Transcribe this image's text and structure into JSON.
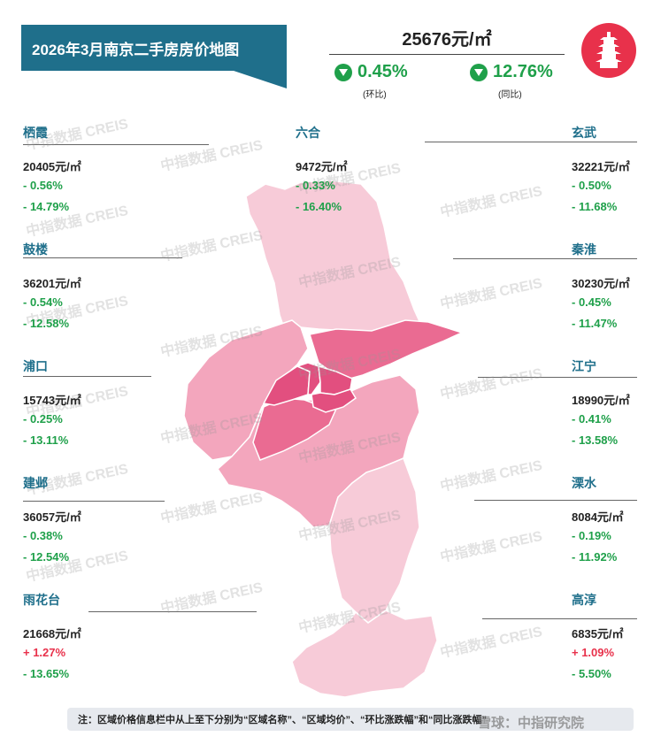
{
  "title": "2026年3月南京二手房房价地图",
  "summary": {
    "avg_price": "25676元/㎡",
    "mom": {
      "value": "0.45%",
      "label": "(环比)",
      "direction": "down"
    },
    "yoy": {
      "value": "12.76%",
      "label": "(同比)",
      "direction": "down"
    }
  },
  "districts": [
    {
      "name": "栖霞",
      "price": "20405元/㎡",
      "mom": "- 0.56%",
      "yoy": "- 14.79%",
      "mom_dir": "down",
      "yoy_dir": "down"
    },
    {
      "name": "鼓楼",
      "price": "36201元/㎡",
      "mom": "- 0.54%",
      "yoy": "- 12.58%",
      "mom_dir": "down",
      "yoy_dir": "down"
    },
    {
      "name": "浦口",
      "price": "15743元/㎡",
      "mom": "- 0.25%",
      "yoy": "- 13.11%",
      "mom_dir": "down",
      "yoy_dir": "down"
    },
    {
      "name": "建邺",
      "price": "36057元/㎡",
      "mom": "- 0.38%",
      "yoy": "- 12.54%",
      "mom_dir": "down",
      "yoy_dir": "down"
    },
    {
      "name": "雨花台",
      "price": "21668元/㎡",
      "mom": "+ 1.27%",
      "yoy": "- 13.65%",
      "mom_dir": "up",
      "yoy_dir": "down"
    },
    {
      "name": "六合",
      "price": "9472元/㎡",
      "mom": "- 0.33%",
      "yoy": "- 16.40%",
      "mom_dir": "down",
      "yoy_dir": "down"
    },
    {
      "name": "玄武",
      "price": "32221元/㎡",
      "mom": "- 0.50%",
      "yoy": "- 11.68%",
      "mom_dir": "down",
      "yoy_dir": "down"
    },
    {
      "name": "秦淮",
      "price": "30230元/㎡",
      "mom": "- 0.45%",
      "yoy": "- 11.47%",
      "mom_dir": "down",
      "yoy_dir": "down"
    },
    {
      "name": "江宁",
      "price": "18990元/㎡",
      "mom": "- 0.41%",
      "yoy": "- 13.58%",
      "mom_dir": "down",
      "yoy_dir": "down"
    },
    {
      "name": "溧水",
      "price": "8084元/㎡",
      "mom": "- 0.19%",
      "yoy": "- 11.92%",
      "mom_dir": "down",
      "yoy_dir": "down"
    },
    {
      "name": "高淳",
      "price": "6835元/㎡",
      "mom": "+ 1.09%",
      "yoy": "- 5.50%",
      "mom_dir": "up",
      "yoy_dir": "down"
    }
  ],
  "watermark": "中指数据 CREIS",
  "note": "注：区域价格信息栏中从上至下分别为“区域名称”、“区域均价”、“环比涨跌幅”和“同比涨跌幅”",
  "brand": "雪球：中指研究院",
  "colors": {
    "banner": "#1f6f8b",
    "down": "#1fa04a",
    "up": "#e8314b",
    "logo": "#e8314b"
  }
}
